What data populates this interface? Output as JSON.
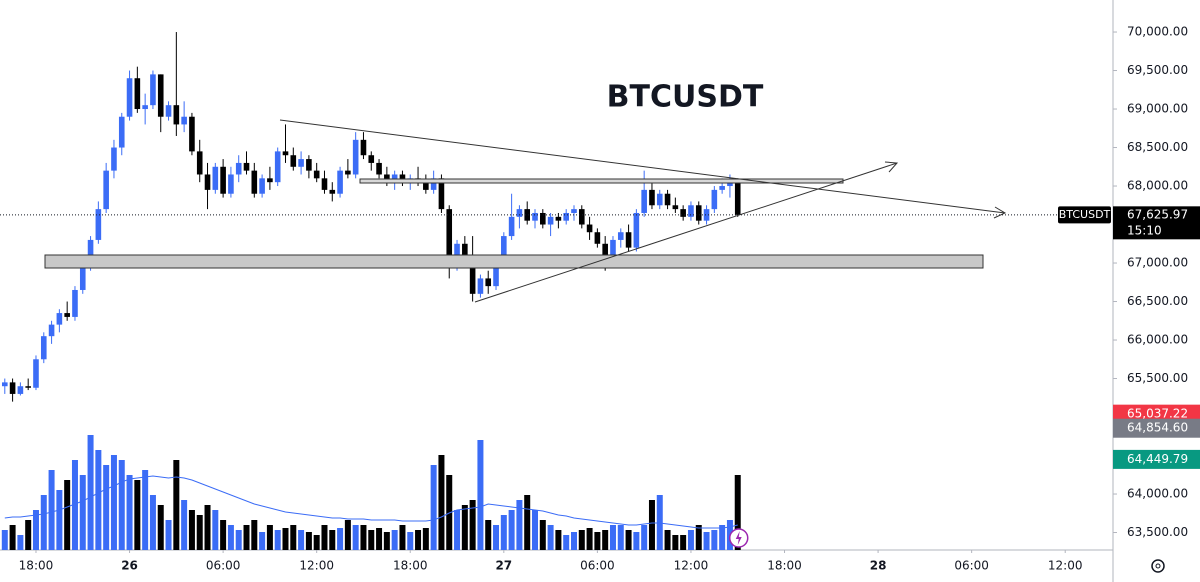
{
  "chart_data": {
    "type": "candlestick",
    "title": "BTCUSDT",
    "up_color": "#3b6cf6",
    "down_color": "#000000",
    "volume_ma_color": "#3b6cf6",
    "xlim": [
      -0.615,
      142
    ],
    "xticks": [
      {
        "value": 4,
        "label": "18:00"
      },
      {
        "value": 16,
        "label": "26"
      },
      {
        "value": 28,
        "label": "06:00"
      },
      {
        "value": 40,
        "label": "12:00"
      },
      {
        "value": 52,
        "label": "18:00"
      },
      {
        "value": 64,
        "label": "27"
      },
      {
        "value": 76,
        "label": "06:00"
      },
      {
        "value": 88,
        "label": "12:00"
      },
      {
        "value": 100,
        "label": "18:00"
      },
      {
        "value": 112,
        "label": "28"
      },
      {
        "value": 124,
        "label": "06:00"
      },
      {
        "value": 136,
        "label": "12:00"
      }
    ],
    "ylim": [
      63273,
      70416
    ],
    "yticks": [
      {
        "value": 70000,
        "label": "70,000.00"
      },
      {
        "value": 69500,
        "label": "69,500.00"
      },
      {
        "value": 69000,
        "label": "69,000.00"
      },
      {
        "value": 68500,
        "label": "68,500.00"
      },
      {
        "value": 68000,
        "label": "68,000.00"
      },
      {
        "value": 67000,
        "label": "67,000.00"
      },
      {
        "value": 66500,
        "label": "66,500.00"
      },
      {
        "value": 66000,
        "label": "66,000.00"
      },
      {
        "value": 65500,
        "label": "65,500.00"
      },
      {
        "value": 64000,
        "label": "64,000.00"
      },
      {
        "value": 63500,
        "label": "63,500.00"
      }
    ],
    "symbol_tag": "BTCUSDT",
    "last_price": {
      "value": 67625.97,
      "label": "67,625.97"
    },
    "countdown": "15:10",
    "price_tags": [
      {
        "value": 65037.22,
        "label": "65,037.22",
        "color": "#f23645"
      },
      {
        "value": 64854.6,
        "label": "64,854.60",
        "color": "#787b86"
      },
      {
        "value": 64449.79,
        "label": "64,449.79",
        "color": "#089981"
      }
    ],
    "open": [
      65400,
      65450,
      65300,
      65400,
      65380,
      65750,
      66050,
      66200,
      66350,
      66300,
      66650,
      67000,
      67300,
      67700,
      68200,
      68500,
      68900,
      69400,
      69000,
      69050,
      69450,
      68900,
      69050,
      68800,
      68900,
      68450,
      68150,
      67950,
      68250,
      67900,
      68150,
      68300,
      68200,
      67900,
      68100,
      68050,
      68450,
      68400,
      68250,
      68350,
      68200,
      68100,
      67950,
      67900,
      68200,
      68150,
      68600,
      68400,
      68300,
      68150,
      68050,
      68150,
      68050,
      68100,
      68050,
      67950,
      68100,
      67700,
      67000,
      67250,
      67100,
      66600,
      66800,
      66700,
      67000,
      67350,
      67600,
      67700,
      67550,
      67650,
      67500,
      67600,
      67550,
      67650,
      67700,
      67500,
      67400,
      67250,
      67100,
      67300,
      67400,
      67200,
      67650,
      67950,
      67750,
      67900,
      67750,
      67700,
      67600,
      67750,
      67550,
      67700,
      67950,
      68000,
      68050
    ],
    "high": [
      65500,
      65500,
      65450,
      65500,
      65800,
      66100,
      66250,
      66400,
      66500,
      66700,
      67100,
      67350,
      67800,
      68300,
      68600,
      68950,
      69500,
      69550,
      69200,
      69500,
      69450,
      69100,
      70000,
      69100,
      68950,
      68600,
      68300,
      68300,
      68350,
      68250,
      68400,
      68450,
      68300,
      68150,
      68250,
      68500,
      68800,
      68500,
      68450,
      68400,
      68300,
      68200,
      68050,
      68250,
      68350,
      68700,
      68700,
      68450,
      68350,
      68250,
      68200,
      68200,
      68150,
      68250,
      68150,
      68200,
      68150,
      67750,
      67300,
      67350,
      67350,
      66850,
      66900,
      67100,
      67400,
      67900,
      67750,
      67800,
      67700,
      67700,
      67650,
      67650,
      67700,
      67750,
      67750,
      67600,
      67450,
      67350,
      67350,
      67450,
      67500,
      67700,
      68200,
      68050,
      67950,
      67950,
      67850,
      67750,
      67800,
      67800,
      67750,
      68000,
      68100,
      68150,
      68100
    ],
    "low": [
      65300,
      65200,
      65280,
      65350,
      65350,
      65700,
      65950,
      66100,
      66250,
      66250,
      66600,
      66900,
      67250,
      67650,
      68100,
      68400,
      68850,
      68950,
      68800,
      69000,
      68700,
      68850,
      68650,
      68700,
      68400,
      68050,
      67700,
      67900,
      67850,
      67850,
      68050,
      68150,
      67850,
      67850,
      67950,
      68000,
      68300,
      68200,
      68150,
      68100,
      68050,
      67900,
      67800,
      67850,
      68100,
      68100,
      68350,
      68200,
      68100,
      68000,
      67950,
      68000,
      67950,
      68000,
      67900,
      67900,
      67650,
      66800,
      66900,
      67000,
      66500,
      66550,
      66600,
      66650,
      66950,
      67300,
      67450,
      67500,
      67450,
      67450,
      67350,
      67450,
      67500,
      67550,
      67450,
      67300,
      67200,
      66900,
      67050,
      67200,
      67150,
      67150,
      67600,
      67700,
      67700,
      67700,
      67650,
      67550,
      67550,
      67500,
      67500,
      67650,
      67900,
      67850,
      67600
    ],
    "close": [
      65450,
      65300,
      65400,
      65380,
      65750,
      66050,
      66200,
      66350,
      66300,
      66650,
      67000,
      67300,
      67700,
      68200,
      68500,
      68900,
      69400,
      69000,
      69050,
      69450,
      68900,
      69050,
      68800,
      68900,
      68450,
      68150,
      67950,
      68250,
      67900,
      68150,
      68300,
      68200,
      67900,
      68100,
      68050,
      68450,
      68400,
      68250,
      68350,
      68200,
      68100,
      67950,
      67900,
      68200,
      68150,
      68600,
      68400,
      68300,
      68150,
      68050,
      68150,
      68050,
      68100,
      68050,
      67950,
      68100,
      67700,
      67000,
      67250,
      67100,
      66600,
      66800,
      66700,
      67000,
      67350,
      67600,
      67700,
      67550,
      67650,
      67500,
      67600,
      67550,
      67650,
      67700,
      67500,
      67400,
      67250,
      67100,
      67300,
      67400,
      67200,
      67650,
      67950,
      67750,
      67900,
      67750,
      67700,
      67600,
      67750,
      67550,
      67700,
      67950,
      68000,
      68050,
      67625.97
    ],
    "volume": [
      20,
      25,
      15,
      30,
      40,
      55,
      80,
      60,
      70,
      90,
      75,
      115,
      100,
      85,
      95,
      90,
      75,
      70,
      80,
      55,
      45,
      30,
      90,
      50,
      40,
      35,
      45,
      40,
      30,
      25,
      20,
      25,
      30,
      18,
      25,
      20,
      22,
      25,
      20,
      18,
      15,
      25,
      20,
      22,
      30,
      25,
      25,
      20,
      22,
      18,
      20,
      25,
      18,
      20,
      22,
      85,
      95,
      75,
      40,
      45,
      50,
      110,
      30,
      25,
      35,
      40,
      50,
      55,
      40,
      30,
      25,
      20,
      15,
      18,
      20,
      22,
      18,
      20,
      25,
      25,
      20,
      18,
      25,
      50,
      55,
      20,
      15,
      15,
      20,
      25,
      18,
      20,
      25,
      30,
      75
    ],
    "volume_ma": [
      32,
      33,
      33,
      34,
      35,
      36,
      38,
      40,
      43,
      46,
      49,
      53,
      57,
      61,
      64,
      68,
      71,
      72,
      73,
      74,
      73,
      72,
      73,
      72,
      70,
      67,
      64,
      61,
      58,
      55,
      52,
      49,
      46,
      44,
      42,
      40,
      38,
      37,
      36,
      35,
      34,
      33,
      32,
      32,
      31,
      31,
      31,
      30,
      30,
      30,
      30,
      29,
      29,
      29,
      29,
      30,
      33,
      37,
      40,
      41,
      42,
      43,
      46,
      45,
      44,
      43,
      42,
      41,
      40,
      39,
      37,
      35,
      34,
      32,
      31,
      30,
      29,
      28,
      27,
      26,
      25,
      25,
      26,
      27,
      27,
      26,
      25,
      24,
      23,
      22,
      22,
      22,
      22,
      23,
      25
    ]
  }
}
